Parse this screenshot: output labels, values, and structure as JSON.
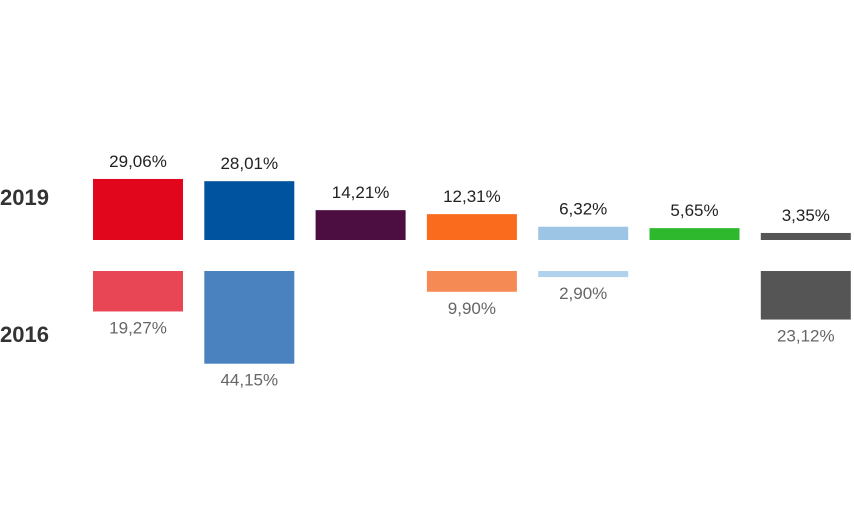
{
  "chart_data": {
    "type": "bar",
    "series": [
      {
        "name": "2019",
        "values": [
          29.06,
          28.01,
          14.21,
          12.31,
          6.32,
          5.65,
          3.35
        ],
        "labels": [
          "29,06%",
          "28,01%",
          "14,21%",
          "12,31%",
          "6,32%",
          "5,65%",
          "3,35%"
        ],
        "colors": [
          "#e2061c",
          "#00539f",
          "#4c0d41",
          "#fa6b1e",
          "#9cc4e4",
          "#2eb82e",
          "#555555"
        ]
      },
      {
        "name": "2016",
        "values": [
          19.27,
          44.15,
          null,
          9.9,
          2.9,
          null,
          23.12
        ],
        "labels": [
          "19,27%",
          "44,15%",
          "",
          "9,90%",
          "2,90%",
          "",
          "23,12%"
        ],
        "colors": [
          "#e84555",
          "#4a82bf",
          "",
          "#f68a55",
          "#b1d2ec",
          "",
          "#555555"
        ]
      }
    ],
    "xlabel": "",
    "ylabel": ""
  }
}
